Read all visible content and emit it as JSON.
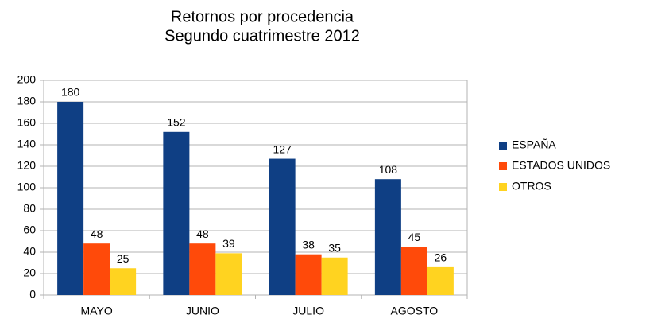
{
  "chart_data": {
    "type": "bar",
    "title": "Retornos por procedencia",
    "subtitle": "Segundo cuatrimestre 2012",
    "categories": [
      "MAYO",
      "JUNIO",
      "JULIO",
      "AGOSTO"
    ],
    "series": [
      {
        "name": "ESPAÑA",
        "color": "#0f3f84",
        "values": [
          180,
          152,
          127,
          108
        ]
      },
      {
        "name": "ESTADOS UNIDOS",
        "color": "#ff4a0a",
        "values": [
          48,
          48,
          38,
          45
        ]
      },
      {
        "name": "OTROS",
        "color": "#ffd320",
        "values": [
          25,
          39,
          35,
          26
        ]
      }
    ],
    "ylim": [
      0,
      200
    ],
    "yticks": [
      0,
      20,
      40,
      60,
      80,
      100,
      120,
      140,
      160,
      180,
      200
    ],
    "grid": true,
    "legend": "right"
  }
}
